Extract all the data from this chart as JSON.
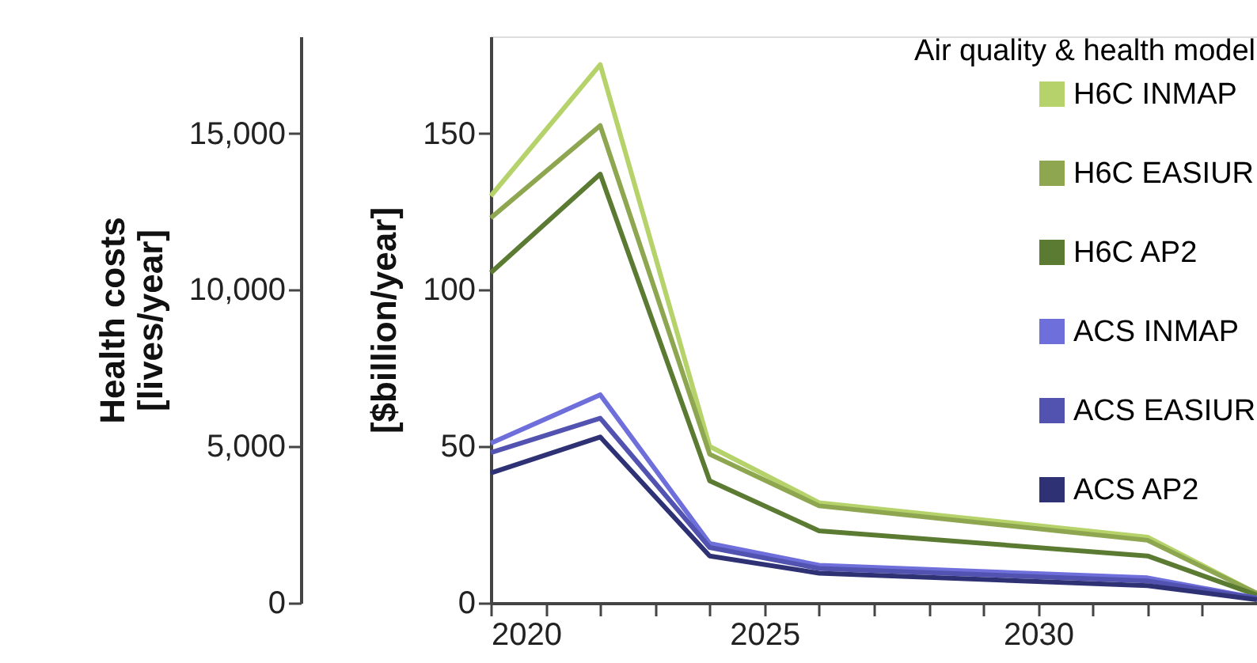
{
  "chart_data": {
    "type": "line",
    "x": [
      2020,
      2022,
      2024,
      2026,
      2032,
      2034
    ],
    "xlim": [
      2020,
      2034
    ],
    "xticks": [
      2020,
      {
        "value": 2021,
        "label": null
      },
      {
        "value": 2022,
        "label": null
      },
      {
        "value": 2023,
        "label": null
      },
      {
        "value": 2024,
        "label": null
      },
      2025,
      {
        "value": 2026,
        "label": null
      },
      {
        "value": 2027,
        "label": null
      },
      {
        "value": 2028,
        "label": null
      },
      {
        "value": 2029,
        "label": null
      },
      2030,
      {
        "value": 2031,
        "label": null
      },
      {
        "value": 2032,
        "label": null
      },
      {
        "value": 2033,
        "label": null
      }
    ],
    "ylim": [
      0,
      181
    ],
    "yticks": [
      0,
      50,
      100,
      150
    ],
    "ylabel": "[$billion/year]",
    "y2lim": [
      0,
      18100
    ],
    "y2ticks": [
      0,
      {
        "value": 5000,
        "label": "5,000"
      },
      {
        "value": 10000,
        "label": "10,000"
      },
      {
        "value": 15000,
        "label": "15,000"
      }
    ],
    "y2label": "Health costs\n[lives/year]",
    "legend_title": "Air quality & health model",
    "legend": "top right",
    "grid": false,
    "marker": "none",
    "line_style": "solid",
    "series": [
      {
        "name": "H6C INMAP",
        "color": "#b5d36a",
        "values": [
          130,
          172,
          50,
          32,
          21,
          3
        ]
      },
      {
        "name": "H6C EASIUR",
        "color": "#8ea64f",
        "values": [
          123,
          152.5,
          47.5,
          31,
          20,
          3
        ]
      },
      {
        "name": "H6C AP2",
        "color": "#5b7a32",
        "values": [
          105.5,
          137,
          39,
          23,
          15,
          2.5
        ]
      },
      {
        "name": "ACS INMAP",
        "color": "#6f6fdc",
        "values": [
          51,
          66.5,
          19,
          12,
          8,
          1.5
        ]
      },
      {
        "name": "ACS EASIUR",
        "color": "#5252b0",
        "values": [
          48,
          59,
          17.7,
          11,
          7,
          1.5
        ]
      },
      {
        "name": "ACS AP2",
        "color": "#2e3275",
        "values": [
          41.5,
          53,
          15,
          9.5,
          5.5,
          1
        ]
      }
    ]
  }
}
